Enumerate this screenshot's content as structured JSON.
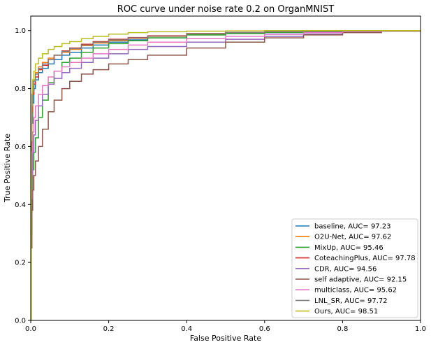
{
  "chart_data": {
    "type": "line",
    "title": "ROC curve under noise rate 0.2 on OrganMNIST",
    "xlabel": "False Positive Rate",
    "ylabel": "True Positive Rate",
    "xlim": [
      0,
      1
    ],
    "ylim": [
      0,
      1.05
    ],
    "xticks": [
      "0.0",
      "0.2",
      "0.4",
      "0.6",
      "0.8",
      "1.0"
    ],
    "yticks": [
      "0.0",
      "0.2",
      "0.4",
      "0.6",
      "0.8",
      "1.0"
    ],
    "grid": false,
    "legend_position": "lower-right",
    "series": [
      {
        "name": "baseline, AUC= 97.23",
        "color": "#1f77b4",
        "x": [
          0,
          0.001,
          0.003,
          0.005,
          0.008,
          0.012,
          0.02,
          0.03,
          0.045,
          0.06,
          0.08,
          0.1,
          0.13,
          0.16,
          0.2,
          0.25,
          0.3,
          0.4,
          0.5,
          0.6,
          0.7,
          0.8,
          0.9,
          1.0
        ],
        "y": [
          0,
          0.55,
          0.68,
          0.75,
          0.8,
          0.83,
          0.855,
          0.87,
          0.885,
          0.9,
          0.915,
          0.925,
          0.94,
          0.95,
          0.96,
          0.968,
          0.975,
          0.985,
          0.99,
          0.993,
          0.996,
          0.998,
          1.0,
          1.0
        ]
      },
      {
        "name": "O2U-Net, AUC= 97.62",
        "color": "#ff7f0e",
        "x": [
          0,
          0.001,
          0.003,
          0.005,
          0.008,
          0.012,
          0.02,
          0.03,
          0.045,
          0.06,
          0.08,
          0.1,
          0.13,
          0.16,
          0.2,
          0.25,
          0.3,
          0.4,
          0.5,
          0.6,
          0.7,
          0.8,
          0.9,
          1.0
        ],
        "y": [
          0,
          0.6,
          0.74,
          0.8,
          0.83,
          0.855,
          0.875,
          0.89,
          0.905,
          0.915,
          0.925,
          0.935,
          0.948,
          0.957,
          0.965,
          0.973,
          0.98,
          0.988,
          0.993,
          0.996,
          0.998,
          0.999,
          1.0,
          1.0
        ]
      },
      {
        "name": "MixUp, AUC= 95.46",
        "color": "#2ca02c",
        "x": [
          0,
          0.001,
          0.003,
          0.005,
          0.008,
          0.012,
          0.02,
          0.03,
          0.045,
          0.06,
          0.08,
          0.1,
          0.13,
          0.16,
          0.2,
          0.25,
          0.3,
          0.4,
          0.5,
          0.6,
          0.7,
          0.8,
          0.9,
          1.0
        ],
        "y": [
          0,
          0.3,
          0.45,
          0.52,
          0.58,
          0.63,
          0.7,
          0.76,
          0.82,
          0.86,
          0.89,
          0.905,
          0.925,
          0.94,
          0.955,
          0.965,
          0.975,
          0.985,
          0.99,
          0.994,
          0.997,
          0.999,
          1.0,
          1.0
        ]
      },
      {
        "name": "CoteachingPlus, AUC= 97.78",
        "color": "#d62728",
        "x": [
          0,
          0.001,
          0.003,
          0.005,
          0.008,
          0.012,
          0.02,
          0.03,
          0.045,
          0.06,
          0.08,
          0.1,
          0.13,
          0.16,
          0.2,
          0.25,
          0.3,
          0.4,
          0.5,
          0.6,
          0.7,
          0.8,
          0.9,
          1.0
        ],
        "y": [
          0,
          0.58,
          0.72,
          0.78,
          0.815,
          0.84,
          0.865,
          0.88,
          0.9,
          0.915,
          0.93,
          0.94,
          0.953,
          0.962,
          0.97,
          0.976,
          0.982,
          0.99,
          0.994,
          0.997,
          0.998,
          0.999,
          1.0,
          1.0
        ]
      },
      {
        "name": "CDR, AUC= 94.56",
        "color": "#9467bd",
        "x": [
          0,
          0.001,
          0.003,
          0.005,
          0.008,
          0.012,
          0.02,
          0.03,
          0.045,
          0.06,
          0.08,
          0.1,
          0.13,
          0.16,
          0.2,
          0.25,
          0.3,
          0.4,
          0.5,
          0.6,
          0.7,
          0.8,
          0.9,
          1.0
        ],
        "y": [
          0,
          0.35,
          0.5,
          0.58,
          0.64,
          0.69,
          0.74,
          0.78,
          0.815,
          0.835,
          0.855,
          0.87,
          0.89,
          0.905,
          0.92,
          0.935,
          0.945,
          0.96,
          0.97,
          0.98,
          0.988,
          0.995,
          0.999,
          1.0
        ]
      },
      {
        "name": "self adaptive, AUC= 92.15",
        "color": "#8c564b",
        "x": [
          0,
          0.001,
          0.003,
          0.005,
          0.008,
          0.012,
          0.02,
          0.03,
          0.045,
          0.06,
          0.08,
          0.1,
          0.13,
          0.16,
          0.2,
          0.25,
          0.3,
          0.4,
          0.5,
          0.6,
          0.7,
          0.8,
          0.9,
          1.0
        ],
        "y": [
          0,
          0.25,
          0.38,
          0.45,
          0.5,
          0.55,
          0.6,
          0.66,
          0.72,
          0.76,
          0.8,
          0.825,
          0.85,
          0.865,
          0.885,
          0.9,
          0.915,
          0.94,
          0.96,
          0.975,
          0.985,
          0.993,
          0.998,
          1.0
        ]
      },
      {
        "name": "multiclass, AUC= 95.62",
        "color": "#e377c2",
        "x": [
          0,
          0.001,
          0.003,
          0.005,
          0.008,
          0.012,
          0.02,
          0.03,
          0.045,
          0.06,
          0.08,
          0.1,
          0.13,
          0.16,
          0.2,
          0.25,
          0.3,
          0.4,
          0.5,
          0.6,
          0.7,
          0.8,
          0.9,
          1.0
        ],
        "y": [
          0,
          0.42,
          0.58,
          0.65,
          0.7,
          0.74,
          0.78,
          0.81,
          0.84,
          0.86,
          0.875,
          0.89,
          0.905,
          0.92,
          0.935,
          0.95,
          0.96,
          0.972,
          0.98,
          0.987,
          0.993,
          0.997,
          1.0,
          1.0
        ]
      },
      {
        "name": "LNL_SR, AUC= 97.72",
        "color": "#7f7f7f",
        "x": [
          0,
          0.001,
          0.003,
          0.005,
          0.008,
          0.012,
          0.02,
          0.03,
          0.045,
          0.06,
          0.08,
          0.1,
          0.13,
          0.16,
          0.2,
          0.25,
          0.3,
          0.4,
          0.5,
          0.6,
          0.7,
          0.8,
          0.9,
          1.0
        ],
        "y": [
          0,
          0.62,
          0.74,
          0.79,
          0.825,
          0.85,
          0.87,
          0.885,
          0.9,
          0.915,
          0.928,
          0.938,
          0.95,
          0.96,
          0.968,
          0.975,
          0.981,
          0.989,
          0.994,
          0.996,
          0.998,
          0.999,
          1.0,
          1.0
        ]
      },
      {
        "name": "Ours, AUC= 98.51",
        "color": "#bcbd22",
        "x": [
          0,
          0.001,
          0.003,
          0.005,
          0.008,
          0.012,
          0.02,
          0.03,
          0.045,
          0.06,
          0.08,
          0.1,
          0.13,
          0.16,
          0.2,
          0.25,
          0.3,
          0.4,
          0.5,
          0.6,
          0.7,
          0.8,
          0.9,
          1.0
        ],
        "y": [
          0,
          0.62,
          0.78,
          0.83,
          0.86,
          0.885,
          0.905,
          0.92,
          0.935,
          0.945,
          0.955,
          0.962,
          0.972,
          0.98,
          0.988,
          0.993,
          0.996,
          0.998,
          0.999,
          1.0,
          1.0,
          1.0,
          1.0,
          1.0
        ]
      }
    ]
  }
}
